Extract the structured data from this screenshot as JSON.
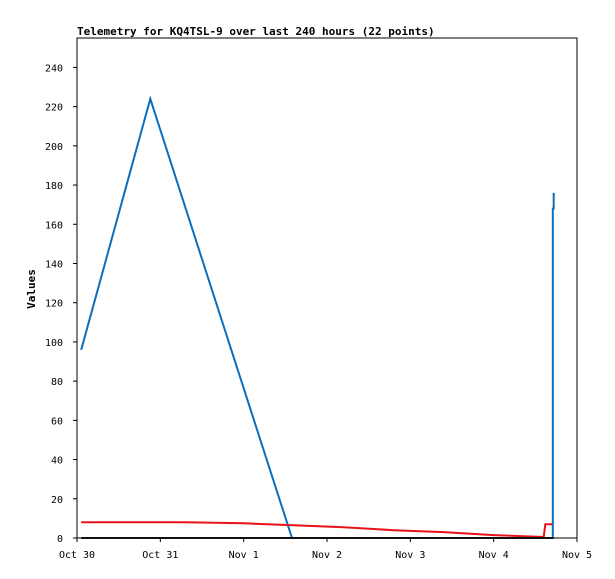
{
  "chart_data": {
    "type": "line",
    "title": "Telemetry for KQ4TSL-9 over last 240 hours (22 points)",
    "ylabel": "Values",
    "xlabel": "",
    "xlim": [
      0,
      6
    ],
    "ylim": [
      0,
      255
    ],
    "x_ticks": [
      {
        "label": "Oct 30",
        "value": 0
      },
      {
        "label": "Oct 31",
        "value": 1
      },
      {
        "label": "Nov 1",
        "value": 2
      },
      {
        "label": "Nov 2",
        "value": 3
      },
      {
        "label": "Nov 3",
        "value": 4
      },
      {
        "label": "Nov 4",
        "value": 5
      },
      {
        "label": "Nov 5",
        "value": 6
      }
    ],
    "y_ticks": [
      0,
      20,
      40,
      60,
      80,
      100,
      120,
      140,
      160,
      180,
      200,
      220,
      240
    ],
    "grid": false,
    "series": [
      {
        "color": "#0a6fbf",
        "points": [
          [
            0.05,
            96
          ],
          [
            0.88,
            224
          ],
          [
            2.58,
            0
          ],
          [
            5.71,
            0
          ],
          [
            5.71,
            168
          ],
          [
            5.72,
            168
          ],
          [
            5.72,
            176
          ]
        ]
      },
      {
        "color": "#e8121a",
        "points": [
          [
            0.05,
            8
          ],
          [
            1.3,
            8
          ],
          [
            2.0,
            7.5
          ],
          [
            2.6,
            6.5
          ],
          [
            3.2,
            5.5
          ],
          [
            3.8,
            4
          ],
          [
            4.4,
            3
          ],
          [
            5.0,
            1.5
          ],
          [
            5.6,
            0.5
          ],
          [
            5.62,
            7
          ],
          [
            5.7,
            7
          ]
        ]
      },
      {
        "color": "#111111",
        "points": [
          [
            0.05,
            0
          ],
          [
            5.72,
            0
          ]
        ]
      }
    ]
  }
}
